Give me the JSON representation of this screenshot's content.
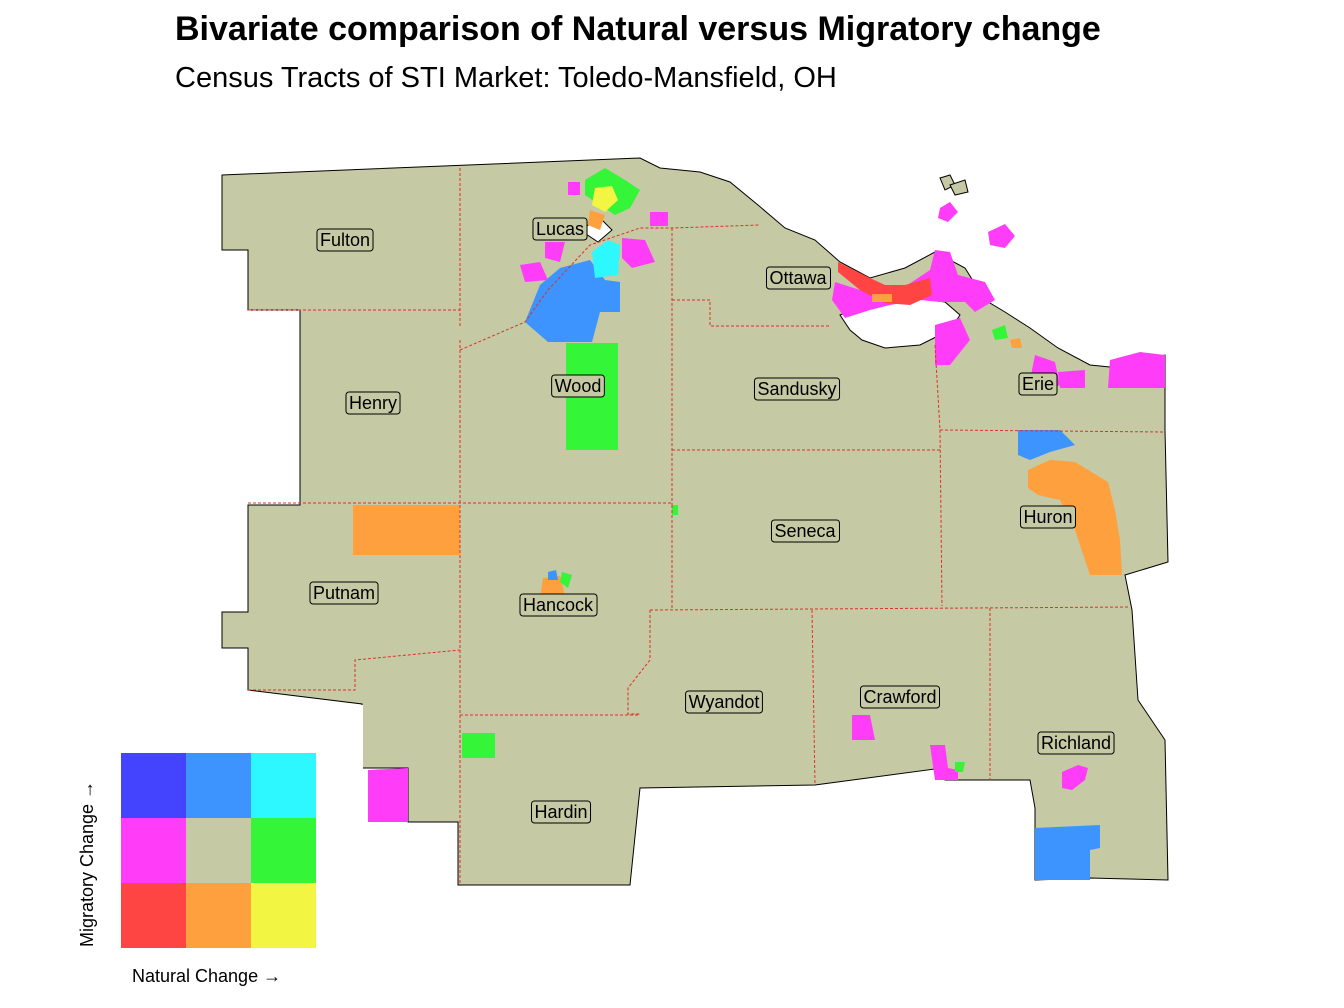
{
  "title": "Bivariate comparison of Natural versus Migratory change",
  "subtitle": "Census Tracts of STI Market: Toledo-Mansfield, OH",
  "colors": {
    "base": "#c5c9a4",
    "county_border": "#e0302a",
    "water": "#ffffff",
    "bivariate": {
      "low_nat_high_mig": "#4444ff",
      "mid_nat_high_mig": "#3d94ff",
      "high_nat_high_mig": "#2ef8ff",
      "low_nat_mid_mig": "#ff3df8",
      "mid_nat_mid_mig": "#c5c9a4",
      "high_nat_mid_mig": "#35f538",
      "low_nat_low_mig": "#ff4444",
      "mid_nat_low_mig": "#ffa03e",
      "high_nat_low_mig": "#f2f542"
    }
  },
  "counties": [
    {
      "name": "Fulton"
    },
    {
      "name": "Lucas"
    },
    {
      "name": "Ottawa"
    },
    {
      "name": "Henry"
    },
    {
      "name": "Wood"
    },
    {
      "name": "Sandusky"
    },
    {
      "name": "Erie"
    },
    {
      "name": "Seneca"
    },
    {
      "name": "Huron"
    },
    {
      "name": "Putnam"
    },
    {
      "name": "Hancock"
    },
    {
      "name": "Wyandot"
    },
    {
      "name": "Crawford"
    },
    {
      "name": "Richland"
    },
    {
      "name": "Hardin"
    }
  ],
  "legend": {
    "x_label": "Natural Change →",
    "y_label": "Migratory Change →"
  }
}
